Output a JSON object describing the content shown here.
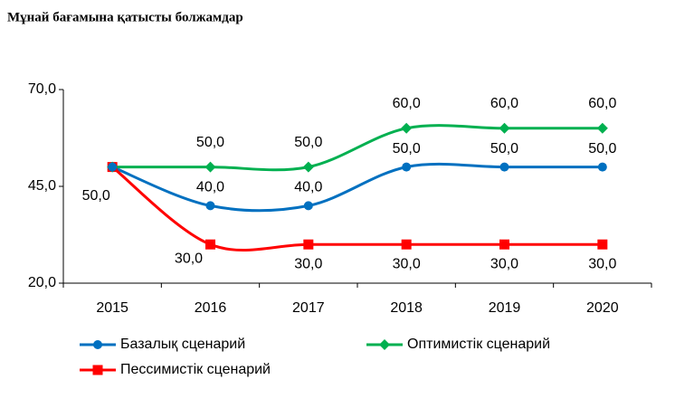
{
  "chart_data": {
    "type": "line",
    "title": "Мұнай бағамына қатысты болжамдар",
    "categories": [
      "2015",
      "2016",
      "2017",
      "2018",
      "2019",
      "2020"
    ],
    "series": [
      {
        "name": "Базалық сценарий",
        "color": "#0070c0",
        "marker": "circle",
        "values": [
          50,
          40,
          40,
          50,
          50,
          50
        ],
        "value_labels": [
          "50,0",
          "40,0",
          "40,0",
          "50,0",
          "50,0",
          "50,0"
        ]
      },
      {
        "name": "Оптимистік сценарий",
        "color": "#00b050",
        "marker": "diamond",
        "values": [
          50,
          50,
          50,
          60,
          60,
          60
        ],
        "value_labels": [
          null,
          "50,0",
          "50,0",
          "60,0",
          "60,0",
          "60,0"
        ]
      },
      {
        "name": "Пессимистік сценарий",
        "color": "#ff0000",
        "marker": "square",
        "values": [
          50,
          30,
          30,
          30,
          30,
          30
        ],
        "value_labels": [
          null,
          "30,0",
          "30,0",
          "30,0",
          "30,0",
          "30,0"
        ]
      }
    ],
    "ylim": [
      20,
      70
    ],
    "yticks": [
      {
        "value": 20,
        "label": "20,0"
      },
      {
        "value": 45,
        "label": "45,0"
      },
      {
        "value": 70,
        "label": "70,0"
      }
    ],
    "smooth": true,
    "legend": "bottom"
  }
}
